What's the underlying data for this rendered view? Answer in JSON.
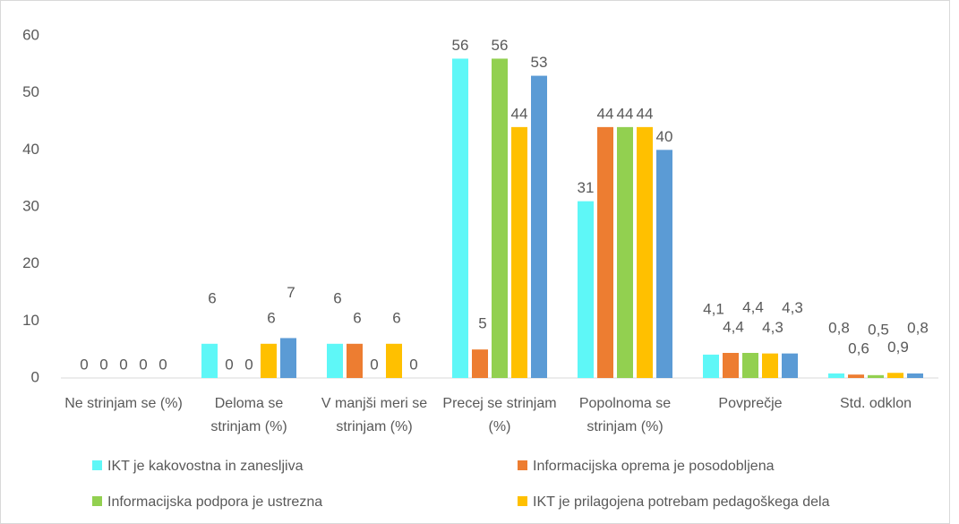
{
  "chart_data": {
    "type": "bar",
    "categories": [
      "Ne strinjam se (%)",
      "Deloma se strinjam (%)",
      "V manjši meri se strinjam (%)",
      "Precej se strinjam (%)",
      "Popolnoma se strinjam (%)",
      "Povprečje",
      "Std. odklon"
    ],
    "series": [
      {
        "name": "IKT je kakovostna in zanesljiva",
        "color": "#5ef7f7",
        "values": [
          0,
          6,
          6,
          56,
          31,
          4.1,
          0.8
        ],
        "value_labels": [
          "0",
          "6",
          "6",
          "56",
          "31",
          "4,1",
          "0,8"
        ]
      },
      {
        "name": "Informacijska oprema je posodobljena",
        "color": "#ed7d31",
        "values": [
          0,
          0,
          6,
          5,
          44,
          4.4,
          0.6
        ],
        "value_labels": [
          "0",
          "0",
          "6",
          "5",
          "44",
          "4,4",
          "0,6"
        ]
      },
      {
        "name": "Informacijska podpora je ustrezna",
        "color": "#92d050",
        "values": [
          0,
          0,
          0,
          56,
          44,
          4.4,
          0.5
        ],
        "value_labels": [
          "0",
          "0",
          "0",
          "56",
          "44",
          "4,4",
          "0,5"
        ]
      },
      {
        "name": "IKT je prilagojena potrebam pedagoškega dela",
        "color": "#ffc000",
        "values": [
          0,
          6,
          6,
          44,
          44,
          4.3,
          0.9
        ],
        "value_labels": [
          "0",
          "6",
          "6",
          "44",
          "44",
          "4,3",
          "0,9"
        ]
      },
      {
        "color": "#5b9bd5",
        "values": [
          0,
          7,
          0,
          53,
          40,
          4.3,
          0.8
        ],
        "value_labels": [
          "0",
          "7",
          "0",
          "53",
          "40",
          "4,3",
          "0,8"
        ]
      }
    ],
    "ylim": [
      0,
      60
    ],
    "yticks": [
      0,
      10,
      20,
      30,
      40,
      50,
      60
    ],
    "grid": false
  }
}
